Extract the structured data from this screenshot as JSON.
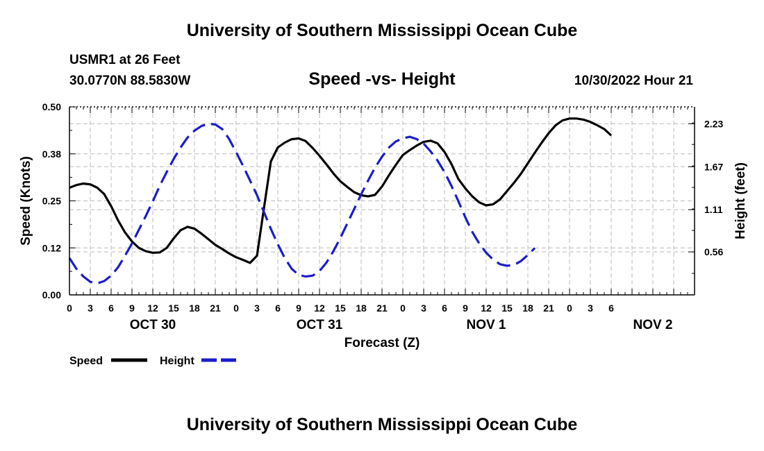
{
  "header": {
    "title": "University of Southern Mississippi Ocean Cube",
    "station": "USMR1 at 26 Feet",
    "coords": "30.0770N  88.5830W",
    "subtitle": "Speed -vs- Height",
    "datetime": "10/30/2022 Hour 21"
  },
  "footer": {
    "title": "University of Southern Mississippi Ocean Cube"
  },
  "colors": {
    "speed": "#000000",
    "height": "#1c1ccc",
    "grid": "#bbbbbb"
  },
  "chart_data": {
    "type": "line",
    "xlabel": "Forecast (Z)",
    "ylabel_left": "Speed (Knots)",
    "ylabel_right": "Height (feet)",
    "x_unit": "hours",
    "xlim": [
      0,
      90
    ],
    "ylim_left": [
      0,
      0.5
    ],
    "ylim_right": [
      0,
      2.45
    ],
    "x_tick_labels": [
      "0",
      "3",
      "6",
      "9",
      "12",
      "15",
      "18",
      "21",
      "0",
      "3",
      "6",
      "9",
      "12",
      "15",
      "18",
      "21",
      "0",
      "3",
      "6",
      "9",
      "12",
      "15",
      "18",
      "21",
      "0",
      "3",
      "6"
    ],
    "date_labels": [
      {
        "label": "OCT 30",
        "hour": 12
      },
      {
        "label": "OCT 31",
        "hour": 36
      },
      {
        "label": "NOV 1",
        "hour": 60
      },
      {
        "label": "NOV 2",
        "hour": 84
      }
    ],
    "y_left_ticks": [
      {
        "value": 0.0,
        "label": "0.00"
      },
      {
        "value": 0.125,
        "label": "0.12"
      },
      {
        "value": 0.25,
        "label": "0.25"
      },
      {
        "value": 0.375,
        "label": "0.38"
      },
      {
        "value": 0.5,
        "label": "0.50"
      }
    ],
    "y_right_ticks": [
      {
        "value": 0.56,
        "label": "0.56"
      },
      {
        "value": 1.11,
        "label": "1.11"
      },
      {
        "value": 1.67,
        "label": "1.67"
      },
      {
        "value": 2.23,
        "label": "2.23"
      }
    ],
    "series": [
      {
        "name": "Speed",
        "axis": "left",
        "style": "solid",
        "points": [
          [
            0,
            0.285
          ],
          [
            1,
            0.292
          ],
          [
            2,
            0.296
          ],
          [
            3,
            0.294
          ],
          [
            4,
            0.285
          ],
          [
            5,
            0.268
          ],
          [
            6,
            0.236
          ],
          [
            7,
            0.198
          ],
          [
            8,
            0.166
          ],
          [
            9,
            0.142
          ],
          [
            10,
            0.125
          ],
          [
            11,
            0.116
          ],
          [
            12,
            0.112
          ],
          [
            13,
            0.113
          ],
          [
            14,
            0.125
          ],
          [
            15,
            0.15
          ],
          [
            16,
            0.172
          ],
          [
            17,
            0.181
          ],
          [
            18,
            0.176
          ],
          [
            19,
            0.163
          ],
          [
            20,
            0.148
          ],
          [
            21,
            0.133
          ],
          [
            22,
            0.122
          ],
          [
            23,
            0.11
          ],
          [
            24,
            0.1
          ],
          [
            25,
            0.093
          ],
          [
            26,
            0.085
          ],
          [
            27,
            0.104
          ],
          [
            28,
            0.23
          ],
          [
            29,
            0.355
          ],
          [
            30,
            0.392
          ],
          [
            31,
            0.405
          ],
          [
            32,
            0.414
          ],
          [
            33,
            0.416
          ],
          [
            34,
            0.409
          ],
          [
            35,
            0.391
          ],
          [
            36,
            0.37
          ],
          [
            37,
            0.347
          ],
          [
            38,
            0.323
          ],
          [
            39,
            0.302
          ],
          [
            40,
            0.287
          ],
          [
            41,
            0.273
          ],
          [
            42,
            0.265
          ],
          [
            43,
            0.262
          ],
          [
            44,
            0.266
          ],
          [
            45,
            0.288
          ],
          [
            46,
            0.318
          ],
          [
            47,
            0.346
          ],
          [
            48,
            0.372
          ],
          [
            49,
            0.385
          ],
          [
            50,
            0.397
          ],
          [
            51,
            0.407
          ],
          [
            52,
            0.41
          ],
          [
            53,
            0.403
          ],
          [
            54,
            0.38
          ],
          [
            55,
            0.348
          ],
          [
            56,
            0.308
          ],
          [
            57,
            0.283
          ],
          [
            58,
            0.262
          ],
          [
            59,
            0.246
          ],
          [
            60,
            0.238
          ],
          [
            61,
            0.241
          ],
          [
            62,
            0.254
          ],
          [
            63,
            0.276
          ],
          [
            64,
            0.298
          ],
          [
            65,
            0.322
          ],
          [
            66,
            0.35
          ],
          [
            67,
            0.378
          ],
          [
            68,
            0.405
          ],
          [
            69,
            0.43
          ],
          [
            70,
            0.451
          ],
          [
            71,
            0.464
          ],
          [
            72,
            0.469
          ],
          [
            73,
            0.469
          ],
          [
            74,
            0.466
          ],
          [
            75,
            0.46
          ],
          [
            76,
            0.451
          ],
          [
            77,
            0.441
          ],
          [
            78,
            0.424
          ]
        ]
      },
      {
        "name": "Height",
        "axis": "right",
        "style": "dashed",
        "points": [
          [
            0,
            0.48
          ],
          [
            1,
            0.34
          ],
          [
            2,
            0.24
          ],
          [
            3,
            0.17
          ],
          [
            4,
            0.15
          ],
          [
            5,
            0.18
          ],
          [
            6,
            0.25
          ],
          [
            7,
            0.36
          ],
          [
            8,
            0.51
          ],
          [
            9,
            0.67
          ],
          [
            10,
            0.85
          ],
          [
            11,
            1.03
          ],
          [
            12,
            1.22
          ],
          [
            13,
            1.42
          ],
          [
            14,
            1.6
          ],
          [
            15,
            1.77
          ],
          [
            16,
            1.92
          ],
          [
            17,
            2.05
          ],
          [
            18,
            2.14
          ],
          [
            19,
            2.2
          ],
          [
            20,
            2.23
          ],
          [
            21,
            2.22
          ],
          [
            22,
            2.16
          ],
          [
            23,
            2.03
          ],
          [
            24,
            1.86
          ],
          [
            25,
            1.68
          ],
          [
            26,
            1.49
          ],
          [
            27,
            1.3
          ],
          [
            28,
            1.08
          ],
          [
            29,
            0.86
          ],
          [
            30,
            0.66
          ],
          [
            31,
            0.48
          ],
          [
            32,
            0.34
          ],
          [
            33,
            0.26
          ],
          [
            34,
            0.24
          ],
          [
            35,
            0.25
          ],
          [
            36,
            0.31
          ],
          [
            37,
            0.42
          ],
          [
            38,
            0.57
          ],
          [
            39,
            0.74
          ],
          [
            40,
            0.93
          ],
          [
            41,
            1.12
          ],
          [
            42,
            1.31
          ],
          [
            43,
            1.49
          ],
          [
            44,
            1.66
          ],
          [
            45,
            1.8
          ],
          [
            46,
            1.92
          ],
          [
            47,
            2.0
          ],
          [
            48,
            2.04
          ],
          [
            49,
            2.06
          ],
          [
            50,
            2.03
          ],
          [
            51,
            1.97
          ],
          [
            52,
            1.87
          ],
          [
            53,
            1.75
          ],
          [
            54,
            1.6
          ],
          [
            55,
            1.42
          ],
          [
            56,
            1.22
          ],
          [
            57,
            1.01
          ],
          [
            58,
            0.82
          ],
          [
            59,
            0.67
          ],
          [
            60,
            0.55
          ],
          [
            61,
            0.46
          ],
          [
            62,
            0.4
          ],
          [
            63,
            0.38
          ],
          [
            64,
            0.39
          ],
          [
            65,
            0.44
          ],
          [
            66,
            0.52
          ],
          [
            67,
            0.61
          ]
        ]
      }
    ],
    "legend": [
      {
        "name": "Speed",
        "label": "Speed"
      },
      {
        "name": "Height",
        "label": "Height"
      }
    ],
    "legend_position": "bottom-left",
    "grid": true
  }
}
